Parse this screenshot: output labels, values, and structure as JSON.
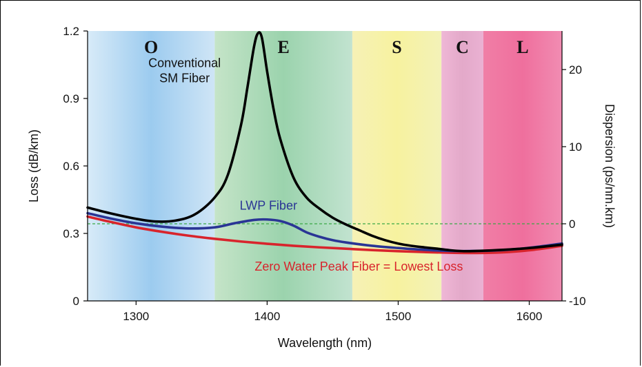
{
  "chart_data": {
    "type": "line",
    "title": "",
    "xlabel": "Wavelength (nm)",
    "ylabel": "Loss (dB/km)",
    "y2label": "Dispersion (ps/nm.km)",
    "xlim": [
      1263,
      1625
    ],
    "ylim": [
      0,
      1.2
    ],
    "y2lim": [
      -10,
      25
    ],
    "x_ticks": [
      1300,
      1400,
      1500,
      1600
    ],
    "y_ticks": [
      0,
      0.3,
      0.6,
      0.9,
      1.2
    ],
    "y_tick_labels": [
      "0",
      "0.3",
      "0.6",
      "0.9",
      "1.2"
    ],
    "y2_ticks": [
      -10,
      0,
      10,
      20
    ],
    "y2_tick_labels": [
      "-10",
      "0",
      "10",
      "20"
    ],
    "zero_dispersion_line": {
      "axis": "y2",
      "value": 0,
      "color": "#3aa845"
    },
    "bands": [
      {
        "label": "O",
        "x0": 1263,
        "x1": 1360,
        "colors": [
          "#d8ebf8",
          "#9ccbef",
          "#cfe5f6"
        ]
      },
      {
        "label": "E",
        "x0": 1360,
        "x1": 1465,
        "colors": [
          "#c5e4c8",
          "#9bd3ad",
          "#c2e3d0"
        ]
      },
      {
        "label": "S",
        "x0": 1465,
        "x1": 1533,
        "colors": [
          "#f6f1b6",
          "#f7f29f",
          "#f3f2b8"
        ]
      },
      {
        "label": "C",
        "x0": 1533,
        "x1": 1565,
        "colors": [
          "#efb7d6",
          "#e3a9c9",
          "#eab1d3"
        ]
      },
      {
        "label": "L",
        "x0": 1565,
        "x1": 1625,
        "colors": [
          "#f07ea6",
          "#ef6f9d",
          "#f18cb2"
        ]
      }
    ],
    "series": [
      {
        "name": "Conventional SM Fiber",
        "color": "#000000",
        "x": [
          1263,
          1280,
          1300,
          1315,
          1330,
          1345,
          1360,
          1370,
          1380,
          1385,
          1390,
          1393,
          1396,
          1400,
          1405,
          1410,
          1420,
          1430,
          1440,
          1450,
          1460,
          1470,
          1480,
          1490,
          1500,
          1510,
          1520,
          1530,
          1540,
          1550,
          1560,
          1580,
          1600,
          1625
        ],
        "y": [
          0.415,
          0.39,
          0.365,
          0.353,
          0.357,
          0.385,
          0.46,
          0.56,
          0.78,
          0.95,
          1.13,
          1.19,
          1.17,
          1.02,
          0.85,
          0.72,
          0.55,
          0.46,
          0.41,
          0.37,
          0.34,
          0.315,
          0.29,
          0.27,
          0.255,
          0.245,
          0.238,
          0.232,
          0.225,
          0.221,
          0.222,
          0.227,
          0.235,
          0.25
        ]
      },
      {
        "name": "LWP Fiber",
        "color": "#2a3595",
        "x": [
          1263,
          1280,
          1300,
          1320,
          1340,
          1360,
          1375,
          1390,
          1400,
          1410,
          1420,
          1430,
          1440,
          1450,
          1460,
          1480,
          1500,
          1520,
          1540,
          1560,
          1580,
          1600,
          1625
        ],
        "y": [
          0.39,
          0.367,
          0.345,
          0.33,
          0.322,
          0.327,
          0.345,
          0.36,
          0.362,
          0.355,
          0.335,
          0.305,
          0.285,
          0.27,
          0.26,
          0.245,
          0.235,
          0.227,
          0.222,
          0.222,
          0.226,
          0.236,
          0.255
        ]
      },
      {
        "name": "Zero Water Peak Fiber = Lowest Loss",
        "color": "#d8242c",
        "x": [
          1263,
          1280,
          1300,
          1320,
          1340,
          1360,
          1380,
          1400,
          1420,
          1440,
          1460,
          1480,
          1500,
          1520,
          1540,
          1560,
          1580,
          1600,
          1625
        ],
        "y": [
          0.375,
          0.352,
          0.327,
          0.307,
          0.29,
          0.276,
          0.264,
          0.254,
          0.245,
          0.238,
          0.232,
          0.226,
          0.221,
          0.217,
          0.214,
          0.213,
          0.216,
          0.225,
          0.245
        ]
      }
    ],
    "annotations": [
      {
        "lines": [
          "Conventional",
          "SM Fiber"
        ],
        "x": 1337,
        "y": 1.04,
        "color": "#111111"
      },
      {
        "lines": [
          "LWP Fiber"
        ],
        "x": 1401,
        "y": 0.405,
        "color": "#2a3595"
      },
      {
        "lines": [
          "Zero Water Peak Fiber = Lowest Loss"
        ],
        "x": 1470,
        "y": 0.135,
        "color": "#d8242c"
      }
    ]
  }
}
